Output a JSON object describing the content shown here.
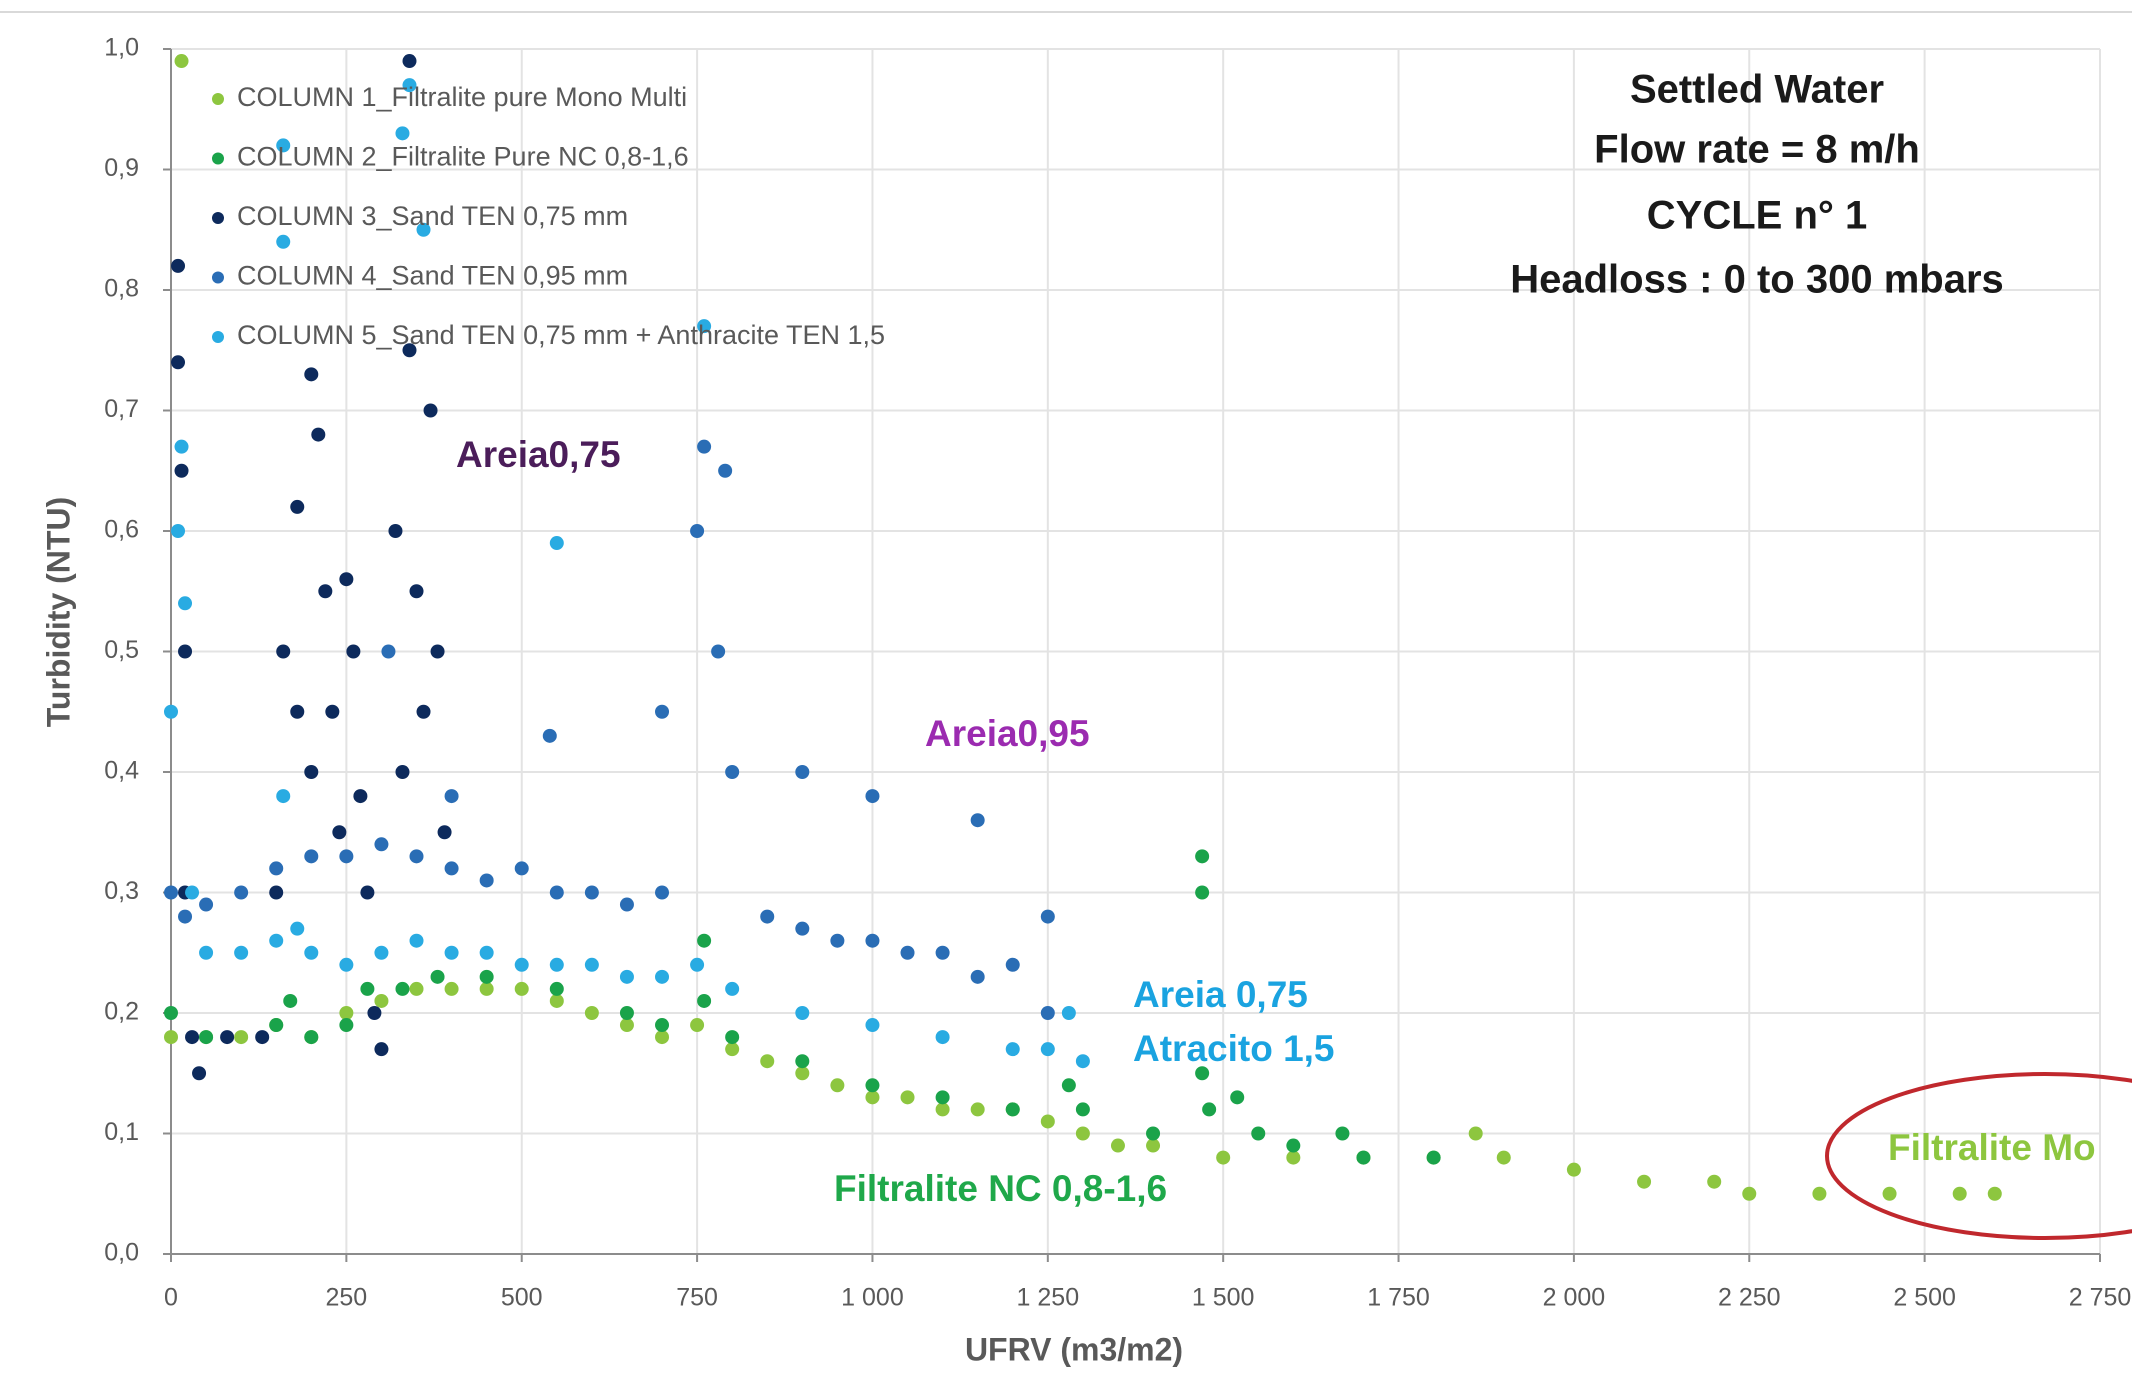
{
  "chart_data": {
    "type": "scatter",
    "title_lines": [
      "Settled Water",
      "Flow rate = 8 m/h",
      "CYCLE n° 1",
      "Headloss : 0 to 300 mbars"
    ],
    "x_label": "UFRV (m3/m2)",
    "y_label": "Turbidity (NTU)",
    "xlim": [
      0,
      2750
    ],
    "ylim": [
      0,
      1
    ],
    "xticks": [
      0,
      250,
      500,
      750,
      {
        "value": 1000,
        "label": "1 000"
      },
      {
        "value": 1250,
        "label": "1 250"
      },
      {
        "value": 1500,
        "label": "1 500"
      },
      {
        "value": 1750,
        "label": "1 750"
      },
      {
        "value": 2000,
        "label": "2 000"
      },
      {
        "value": 2250,
        "label": "2 250"
      },
      {
        "value": 2500,
        "label": "2 500"
      },
      {
        "value": 2750,
        "label": "2 750"
      }
    ],
    "yticks": [
      {
        "value": 0,
        "label": "0,0"
      },
      {
        "value": 0.1,
        "label": "0,1"
      },
      {
        "value": 0.2,
        "label": "0,2"
      },
      {
        "value": 0.3,
        "label": "0,3"
      },
      {
        "value": 0.4,
        "label": "0,4"
      },
      {
        "value": 0.5,
        "label": "0,5"
      },
      {
        "value": 0.6,
        "label": "0,6"
      },
      {
        "value": 0.7,
        "label": "0,7"
      },
      {
        "value": 0.8,
        "label": "0,8"
      },
      {
        "value": 0.9,
        "label": "0,9"
      },
      {
        "value": 1,
        "label": "1,0"
      }
    ],
    "grid": true,
    "legend": "upper left",
    "series": [
      {
        "name": "COLUMN 1_Filtralite pure Mono Multi",
        "color": "#8dc63f",
        "x": [
          15,
          0,
          50,
          100,
          150,
          200,
          250,
          300,
          350,
          400,
          450,
          500,
          550,
          600,
          650,
          700,
          750,
          800,
          850,
          900,
          950,
          1000,
          1050,
          1100,
          1150,
          1200,
          1250,
          1300,
          1350,
          1400,
          1500,
          1600,
          1700,
          1800,
          1860,
          1900,
          2000,
          2100,
          2200,
          2250,
          2350,
          2450,
          2550,
          2600
        ],
        "values": [
          0.99,
          0.18,
          0.18,
          0.18,
          0.19,
          0.18,
          0.2,
          0.21,
          0.22,
          0.22,
          0.22,
          0.22,
          0.21,
          0.2,
          0.19,
          0.18,
          0.19,
          0.17,
          0.16,
          0.15,
          0.14,
          0.13,
          0.13,
          0.12,
          0.12,
          0.12,
          0.11,
          0.1,
          0.09,
          0.09,
          0.08,
          0.08,
          0.08,
          0.08,
          0.1,
          0.08,
          0.07,
          0.06,
          0.06,
          0.05,
          0.05,
          0.05,
          0.05,
          0.05
        ]
      },
      {
        "name": "COLUMN 2_Filtralite Pure NC 0,8-1,6",
        "color": "#1aa34a",
        "x": [
          0,
          50,
          150,
          170,
          200,
          250,
          280,
          330,
          380,
          450,
          550,
          650,
          700,
          760,
          760,
          800,
          900,
          1000,
          1100,
          1200,
          1280,
          1300,
          1400,
          1470,
          1470,
          1470,
          1480,
          1520,
          1550,
          1600,
          1670,
          1700,
          1800
        ],
        "values": [
          0.2,
          0.18,
          0.19,
          0.21,
          0.18,
          0.19,
          0.22,
          0.22,
          0.23,
          0.23,
          0.22,
          0.2,
          0.19,
          0.21,
          0.26,
          0.18,
          0.16,
          0.14,
          0.13,
          0.12,
          0.14,
          0.12,
          0.1,
          0.33,
          0.3,
          0.15,
          0.12,
          0.13,
          0.1,
          0.09,
          0.1,
          0.08,
          0.08
        ]
      },
      {
        "name": "COLUMN 3_Sand TEN 0,75 mm",
        "color": "#0d2a5c",
        "x": [
          10,
          10,
          15,
          20,
          20,
          30,
          40,
          80,
          130,
          150,
          160,
          180,
          180,
          200,
          200,
          210,
          220,
          230,
          240,
          250,
          260,
          270,
          280,
          290,
          300,
          320,
          330,
          340,
          340,
          350,
          360,
          370,
          380,
          390
        ],
        "values": [
          0.82,
          0.74,
          0.65,
          0.5,
          0.3,
          0.18,
          0.15,
          0.18,
          0.18,
          0.3,
          0.5,
          0.62,
          0.45,
          0.73,
          0.4,
          0.68,
          0.55,
          0.45,
          0.35,
          0.56,
          0.5,
          0.38,
          0.3,
          0.2,
          0.17,
          0.6,
          0.4,
          0.99,
          0.75,
          0.55,
          0.45,
          0.7,
          0.5,
          0.35
        ]
      },
      {
        "name": "COLUMN 4_Sand TEN 0,95 mm",
        "color": "#2a6db5",
        "x": [
          0,
          20,
          50,
          100,
          150,
          200,
          250,
          300,
          310,
          350,
          400,
          400,
          450,
          500,
          540,
          550,
          600,
          650,
          700,
          700,
          750,
          760,
          780,
          790,
          800,
          850,
          900,
          900,
          950,
          1000,
          1000,
          1050,
          1100,
          1150,
          1150,
          1200,
          1250,
          1250
        ],
        "values": [
          0.3,
          0.28,
          0.29,
          0.3,
          0.32,
          0.33,
          0.33,
          0.34,
          0.5,
          0.33,
          0.32,
          0.38,
          0.31,
          0.32,
          0.43,
          0.3,
          0.3,
          0.29,
          0.3,
          0.45,
          0.6,
          0.67,
          0.5,
          0.65,
          0.4,
          0.28,
          0.27,
          0.4,
          0.26,
          0.26,
          0.38,
          0.25,
          0.25,
          0.36,
          0.23,
          0.24,
          0.2,
          0.28
        ]
      },
      {
        "name": "COLUMN 5_Sand TEN 0,75 mm + Anthracite TEN 1,5",
        "color": "#29abe2",
        "x": [
          0,
          10,
          15,
          20,
          30,
          50,
          100,
          150,
          160,
          160,
          160,
          180,
          200,
          250,
          300,
          330,
          340,
          350,
          360,
          400,
          450,
          500,
          550,
          550,
          600,
          650,
          700,
          750,
          760,
          800,
          900,
          1000,
          1100,
          1200,
          1250,
          1280,
          1300
        ],
        "values": [
          0.45,
          0.6,
          0.67,
          0.54,
          0.3,
          0.25,
          0.25,
          0.26,
          0.38,
          0.92,
          0.84,
          0.27,
          0.25,
          0.24,
          0.25,
          0.93,
          0.97,
          0.26,
          0.85,
          0.25,
          0.25,
          0.24,
          0.59,
          0.24,
          0.24,
          0.23,
          0.23,
          0.24,
          0.77,
          0.22,
          0.2,
          0.19,
          0.18,
          0.17,
          0.17,
          0.2,
          0.16
        ]
      }
    ],
    "annotations": [
      {
        "text": "Areia0,75",
        "color": "#4b1d5a"
      },
      {
        "text": "Areia0,95",
        "color": "#9b2bb0"
      },
      {
        "text": "Areia 0,75",
        "color": "#1aa3e0"
      },
      {
        "text": "Atracito 1,5",
        "color": "#1aa3e0"
      },
      {
        "text": "Filtralite NC 0,8-1,6",
        "color": "#1fa84a"
      },
      {
        "text": "Filtralite Mo",
        "color": "#8dc63f"
      }
    ]
  }
}
